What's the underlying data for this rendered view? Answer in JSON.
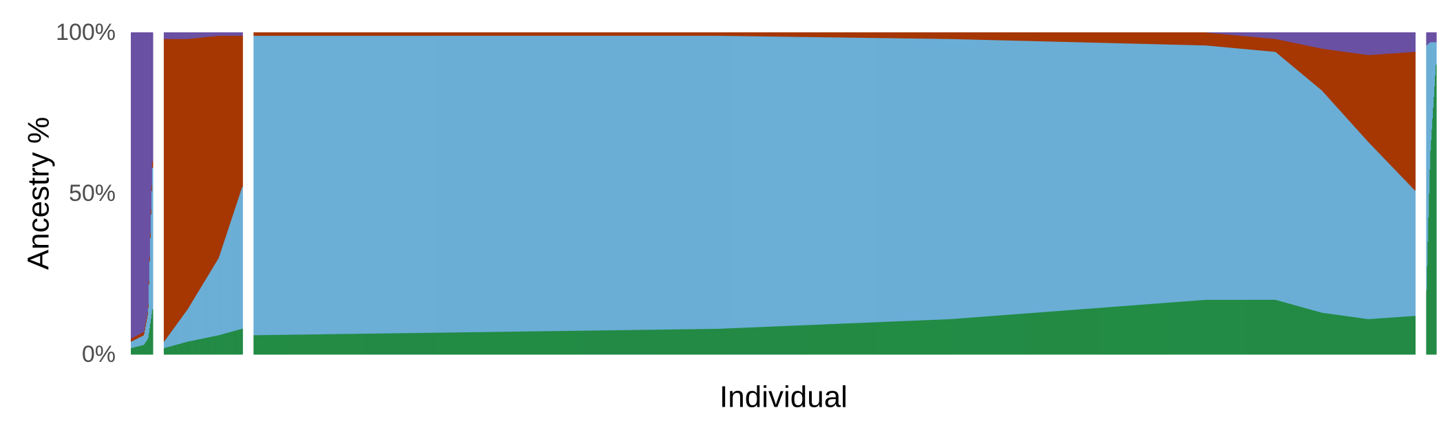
{
  "chart_data": {
    "type": "stacked-bar",
    "xlabel": "Individual",
    "ylabel": "Ancestry %",
    "ylim": [
      0,
      100
    ],
    "y_ticks": [
      {
        "value": 0,
        "label": "0%"
      },
      {
        "value": 50,
        "label": "50%"
      },
      {
        "value": 100,
        "label": "100%"
      }
    ],
    "grid": false,
    "legend": "none",
    "component_colors": [
      "#238b45",
      "#6baed6",
      "#a63603",
      "#6a51a3"
    ],
    "components_bottom_to_top": [
      "green",
      "light-blue",
      "red",
      "purple"
    ],
    "groups": [
      {
        "relative_width": 0.017,
        "profile": [
          {
            "pos": 0.0,
            "values": [
              2,
              2,
              1,
              95
            ]
          },
          {
            "pos": 0.6,
            "values": [
              3,
              3,
              1,
              93
            ]
          },
          {
            "pos": 0.8,
            "values": [
              5,
              8,
              1,
              86
            ]
          },
          {
            "pos": 1.0,
            "values": [
              14,
              44,
              2,
              40
            ]
          }
        ]
      },
      {
        "relative_width": 0.061,
        "profile": [
          {
            "pos": 0.0,
            "values": [
              2,
              2,
              94,
              2
            ]
          },
          {
            "pos": 0.3,
            "values": [
              4,
              10,
              84,
              2
            ]
          },
          {
            "pos": 0.7,
            "values": [
              6,
              24,
              69,
              1
            ]
          },
          {
            "pos": 1.0,
            "values": [
              8,
              44,
              47,
              1
            ]
          }
        ]
      },
      {
        "relative_width": 0.9,
        "profile": [
          {
            "pos": 0.0,
            "values": [
              6,
              93,
              1,
              0
            ]
          },
          {
            "pos": 0.4,
            "values": [
              8,
              91,
              1,
              0
            ]
          },
          {
            "pos": 0.6,
            "values": [
              11,
              87,
              2,
              0
            ]
          },
          {
            "pos": 0.82,
            "values": [
              17,
              79,
              4,
              0
            ]
          },
          {
            "pos": 0.88,
            "values": [
              17,
              77,
              4,
              2
            ]
          },
          {
            "pos": 0.92,
            "values": [
              13,
              69,
              13,
              5
            ]
          },
          {
            "pos": 0.96,
            "values": [
              11,
              55,
              27,
              7
            ]
          },
          {
            "pos": 1.0,
            "values": [
              12,
              39,
              43,
              6
            ]
          }
        ]
      },
      {
        "relative_width": 0.0078,
        "profile": [
          {
            "pos": 0.0,
            "values": [
              20,
              76,
              0,
              4
            ]
          },
          {
            "pos": 0.4,
            "values": [
              62,
              35,
              0,
              3
            ]
          },
          {
            "pos": 1.0,
            "values": [
              90,
              7,
              0,
              3
            ]
          }
        ]
      }
    ]
  }
}
